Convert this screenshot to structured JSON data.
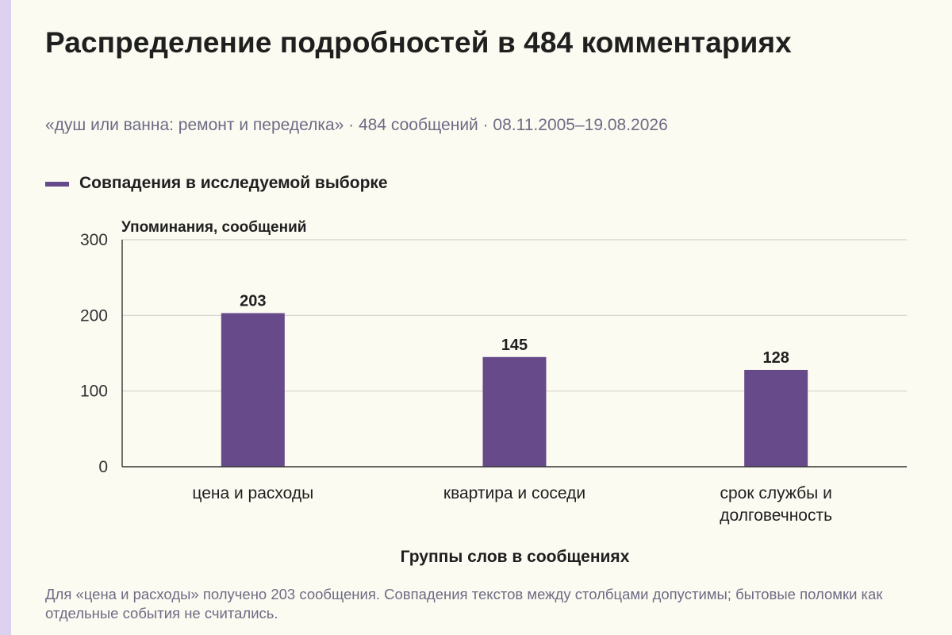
{
  "page": {
    "title": "Распределение подробностей в 484 комментариях",
    "subtitle": "«душ или ванна: ремонт и переделка» · 484 сообщений · 08.11.2005–19.08.2026",
    "note": "Для «цена и расходы» получено 203 сообщения. Совпадения текстов между столбцами допустимы; бытовые поломки как отдельные события не считались."
  },
  "colors": {
    "bar": "#674a8a",
    "accent_strip": "#dcd2ef",
    "grid": "#d4d2c8",
    "axis": "#333333"
  },
  "chart_data": {
    "type": "bar",
    "title": "Распределение подробностей в 484 комментариях",
    "subtitle": "«душ или ванна: ремонт и переделка» · 484 сообщений · 08.11.2005–19.08.2026",
    "xlabel": "Группы слов в сообщениях",
    "ylabel": "Упоминания, сообщений",
    "ylim": [
      0,
      300
    ],
    "yticks": [
      0,
      100,
      200,
      300
    ],
    "grid": true,
    "legend_position": "top-left",
    "categories": [
      [
        "цена и расходы"
      ],
      [
        "квартира и соседи"
      ],
      [
        "срок службы и",
        "долговечность"
      ]
    ],
    "series": [
      {
        "name": "Совпадения в исследуемой выборке",
        "values": [
          203,
          145,
          128
        ]
      }
    ]
  }
}
